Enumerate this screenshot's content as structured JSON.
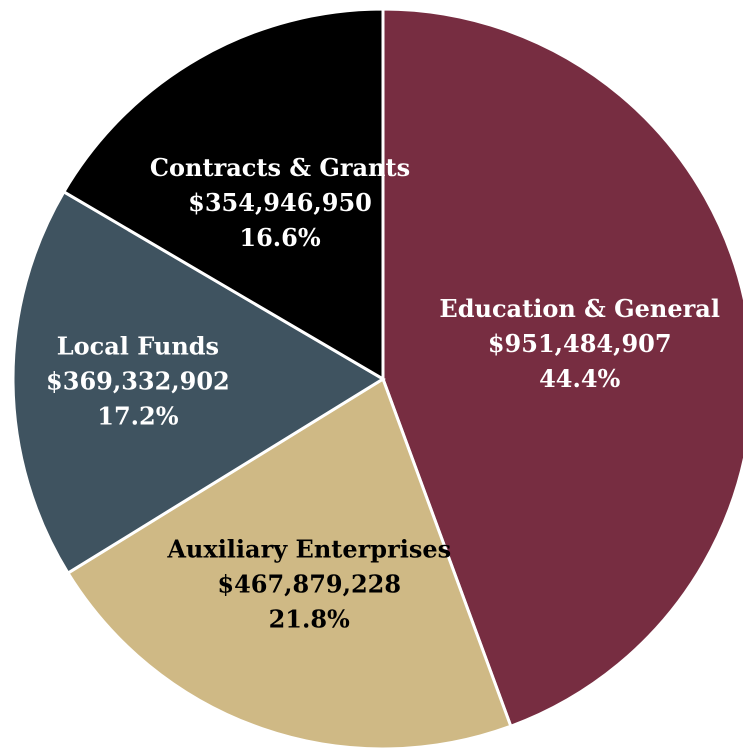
{
  "chart_data": {
    "type": "pie",
    "title": "",
    "start_angle_deg": 0,
    "direction": "clockwise",
    "slices": [
      {
        "name": "Education & General",
        "value": 951484907,
        "value_label": "$951,484,907",
        "percent_label": "44.4%",
        "color": "#772D41",
        "label_color": "#ffffff"
      },
      {
        "name": "Auxiliary Enterprises",
        "value": 467879228,
        "value_label": "$467,879,228",
        "percent_label": "21.8%",
        "color": "#CFB985",
        "label_color": "#000000"
      },
      {
        "name": "Local Funds",
        "value": 369332902,
        "value_label": "$369,332,902",
        "percent_label": "17.2%",
        "color": "#3F5360",
        "label_color": "#ffffff"
      },
      {
        "name": "Contracts & Grants",
        "value": 354946950,
        "value_label": "$354,946,950",
        "percent_label": "16.6%",
        "color": "#000000",
        "label_color": "#ffffff"
      }
    ]
  }
}
